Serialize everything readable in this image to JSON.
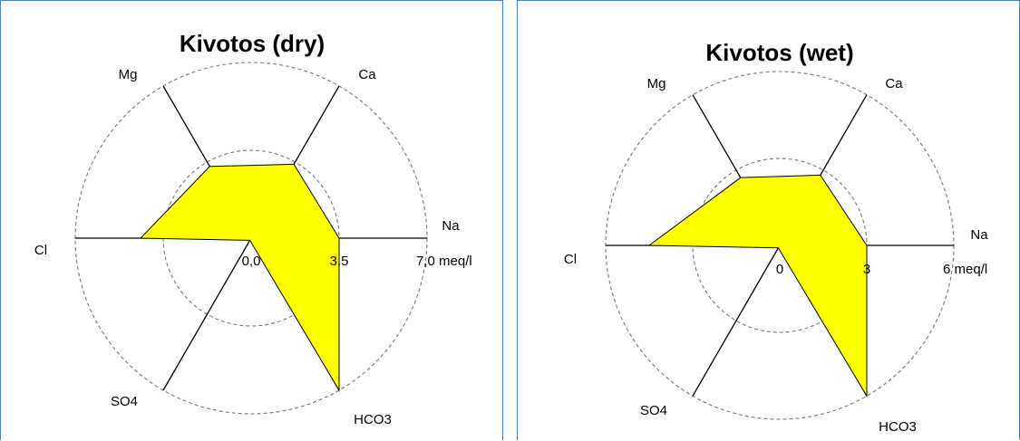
{
  "chart_data": [
    {
      "type": "radar",
      "title": "Kivotos (dry)",
      "axes": [
        "Na",
        "Ca",
        "Mg",
        "Cl",
        "SO4",
        "HCO3"
      ],
      "values": [
        3.5,
        3.4,
        3.3,
        4.4,
        0.1,
        7.0
      ],
      "rmax": 7.0,
      "scale_labels": [
        "0,0",
        "3,5",
        "7,0 meq/l"
      ],
      "unit": "meq/l",
      "fill_color": "#ffff00"
    },
    {
      "type": "radar",
      "title": "Kivotos (wet)",
      "axes": [
        "Na",
        "Ca",
        "Mg",
        "Cl",
        "SO4",
        "HCO3"
      ],
      "values": [
        3.0,
        2.8,
        2.7,
        4.5,
        0.1,
        6.2
      ],
      "rmax": 6.0,
      "scale_labels": [
        "0",
        "3",
        "6 meq/l"
      ],
      "unit": "meq/l",
      "fill_color": "#ffff00"
    }
  ]
}
